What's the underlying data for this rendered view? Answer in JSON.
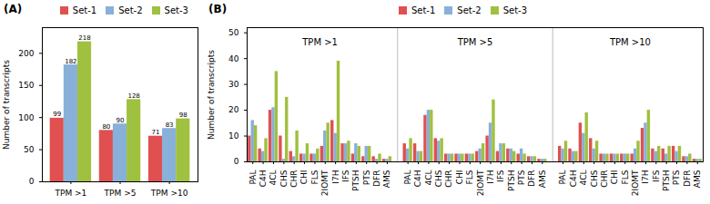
{
  "chart_data": [
    {
      "type": "bar",
      "title": "(A)",
      "categories": [
        "TPM >1",
        "TPM >5",
        "TPM >10"
      ],
      "series": [
        {
          "name": "Set-1",
          "color": "#e05050",
          "values": [
            99,
            80,
            71
          ]
        },
        {
          "name": "Set-2",
          "color": "#88b0d8",
          "values": [
            182,
            90,
            83
          ]
        },
        {
          "name": "Set-3",
          "color": "#a0c040",
          "values": [
            218,
            128,
            98
          ]
        }
      ],
      "ylabel": "Number of transcripts",
      "ylim": [
        0,
        240
      ],
      "yticks": [
        0,
        50,
        100,
        150,
        200
      ],
      "data_labels": true,
      "legend": "upper right",
      "grid": false
    },
    {
      "type": "bar",
      "title": "(B)",
      "categories": [
        "PAL",
        "C4H",
        "4CL",
        "CHS",
        "CHR",
        "CHI",
        "FLS",
        "2IOMT",
        "I7H",
        "IFS",
        "PTSH",
        "PTS",
        "DFR",
        "AMS",
        "PAL",
        "C4H",
        "4CL",
        "CHS",
        "CHR",
        "CHI",
        "FLS",
        "2IOMT",
        "I7H",
        "IFS",
        "PTSH",
        "PTS",
        "DFR",
        "AMS",
        "PAL",
        "C4H",
        "4CL",
        "CHS",
        "CHR",
        "CHI",
        "FLS",
        "2IOMT",
        "I7H",
        "IFS",
        "PTSH",
        "PTS",
        "DFR",
        "AMS"
      ],
      "series": [
        {
          "name": "Set-1",
          "color": "#e05050",
          "values": [
            10,
            5,
            20,
            10,
            4,
            3,
            3,
            6,
            16,
            7,
            3,
            2,
            2,
            1,
            7,
            7,
            18,
            9,
            3,
            3,
            3,
            4,
            10,
            4,
            5,
            3,
            2,
            1,
            6,
            5,
            15,
            9,
            3,
            3,
            3,
            3,
            13,
            5,
            5,
            6,
            2,
            1
          ]
        },
        {
          "name": "Set-2",
          "color": "#88b0d8",
          "values": [
            16,
            4,
            21,
            1,
            2,
            3,
            3,
            12,
            11,
            7,
            7,
            6,
            1,
            1,
            5,
            4,
            20,
            8,
            3,
            3,
            3,
            5,
            15,
            7,
            5,
            5,
            2,
            1,
            5,
            4,
            11,
            5,
            3,
            3,
            3,
            5,
            15,
            4,
            3,
            4,
            2,
            1
          ]
        },
        {
          "name": "Set-3",
          "color": "#a0c040",
          "values": [
            14,
            9,
            35,
            25,
            12,
            7,
            5,
            15,
            39,
            8,
            6,
            6,
            3,
            2,
            9,
            4,
            20,
            9,
            3,
            3,
            3,
            7,
            24,
            7,
            4,
            3,
            2,
            1,
            8,
            4,
            19,
            8,
            3,
            3,
            3,
            8,
            20,
            6,
            6,
            6,
            3,
            1
          ]
        }
      ],
      "annotations": [
        "TPM >1",
        "TPM >5",
        "TPM >10"
      ],
      "ylabel": "Number of transcripts",
      "ylim": [
        0,
        52
      ],
      "yticks": [
        0,
        10,
        20,
        30,
        40,
        50
      ],
      "data_labels": false,
      "legend": "upper center",
      "grid": false
    }
  ]
}
